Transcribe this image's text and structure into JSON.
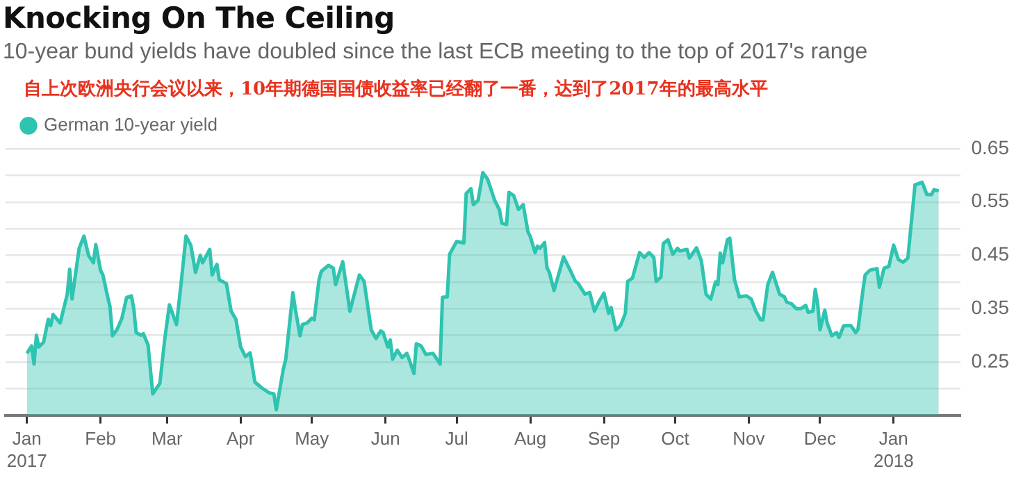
{
  "chart_data": {
    "type": "area",
    "title": "Knocking On The Ceiling",
    "subtitle": "10-year bund yields have doubled since the last ECB meeting to the top of 2017's range",
    "annotations": [
      "自上次欧洲央行会议以来，10年期德国国债收益率已经翻了一番，达到了2017年的最高水平"
    ],
    "legend": "top left",
    "grid": "y",
    "xlim": [
      "2016-12-23",
      "2018-01-29"
    ],
    "xticks": [
      {
        "value": "2017-01-01",
        "label": "Jan\n2017"
      },
      {
        "value": "2017-02-01",
        "label": "Feb"
      },
      {
        "value": "2017-03-01",
        "label": "Mar"
      },
      {
        "value": "2017-04-01",
        "label": "Apr"
      },
      {
        "value": "2017-05-01",
        "label": "May"
      },
      {
        "value": "2017-06-01",
        "label": "Jun"
      },
      {
        "value": "2017-07-01",
        "label": "Jul"
      },
      {
        "value": "2017-08-01",
        "label": "Aug"
      },
      {
        "value": "2017-09-01",
        "label": "Sep"
      },
      {
        "value": "2017-10-01",
        "label": "Oct"
      },
      {
        "value": "2017-11-01",
        "label": "Nov"
      },
      {
        "value": "2017-12-01",
        "label": "Dec"
      },
      {
        "value": "2018-01-01",
        "label": "Jan\n2018"
      }
    ],
    "ylim": [
      0.15,
      0.65
    ],
    "yticks": [
      {
        "value": 0.15,
        "label": null
      },
      {
        "value": 0.2,
        "label": null
      },
      0.25,
      {
        "value": 0.3,
        "label": null
      },
      0.35,
      {
        "value": 0.4,
        "label": null
      },
      0.45,
      {
        "value": 0.5,
        "label": null
      },
      0.55,
      {
        "value": 0.6,
        "label": null
      },
      0.65
    ],
    "x": [
      "2017-01-01",
      "2017-01-03",
      "2017-01-04",
      "2017-01-05",
      "2017-01-06",
      "2017-01-08",
      "2017-01-10",
      "2017-01-11",
      "2017-01-12",
      "2017-01-15",
      "2017-01-18",
      "2017-01-19",
      "2017-01-20",
      "2017-01-23",
      "2017-01-25",
      "2017-01-27",
      "2017-01-29",
      "2017-01-30",
      "2017-02-01",
      "2017-02-02",
      "2017-02-04",
      "2017-02-05",
      "2017-02-06",
      "2017-02-08",
      "2017-02-10",
      "2017-02-12",
      "2017-02-14",
      "2017-02-15",
      "2017-02-16",
      "2017-02-18",
      "2017-02-19",
      "2017-02-21",
      "2017-02-23",
      "2017-02-26",
      "2017-02-28",
      "2017-03-02",
      "2017-03-05",
      "2017-03-07",
      "2017-03-09",
      "2017-03-11",
      "2017-03-13",
      "2017-03-15",
      "2017-03-16",
      "2017-03-19",
      "2017-03-20",
      "2017-03-22",
      "2017-03-23",
      "2017-03-26",
      "2017-03-28",
      "2017-03-30",
      "2017-04-01",
      "2017-04-03",
      "2017-04-05",
      "2017-04-07",
      "2017-04-10",
      "2017-04-13",
      "2017-04-15",
      "2017-04-16",
      "2017-04-19",
      "2017-04-20",
      "2017-04-23",
      "2017-04-24",
      "2017-04-26",
      "2017-04-27",
      "2017-04-29",
      "2017-05-01",
      "2017-05-02",
      "2017-05-04",
      "2017-05-05",
      "2017-05-08",
      "2017-05-10",
      "2017-05-11",
      "2017-05-14",
      "2017-05-17",
      "2017-05-21",
      "2017-05-23",
      "2017-05-26",
      "2017-05-28",
      "2017-05-30",
      "2017-05-31",
      "2017-06-02",
      "2017-06-03",
      "2017-06-04",
      "2017-06-06",
      "2017-06-08",
      "2017-06-10",
      "2017-06-11",
      "2017-06-13",
      "2017-06-14",
      "2017-06-16",
      "2017-06-18",
      "2017-06-21",
      "2017-06-24",
      "2017-06-25",
      "2017-06-27",
      "2017-06-28",
      "2017-07-01",
      "2017-07-04",
      "2017-07-05",
      "2017-07-07",
      "2017-07-08",
      "2017-07-10",
      "2017-07-12",
      "2017-07-14",
      "2017-07-17",
      "2017-07-19",
      "2017-07-20",
      "2017-07-22",
      "2017-07-23",
      "2017-07-25",
      "2017-07-27",
      "2017-07-29",
      "2017-07-31",
      "2017-08-01",
      "2017-08-03",
      "2017-08-04",
      "2017-08-05",
      "2017-08-07",
      "2017-08-08",
      "2017-08-09",
      "2017-08-11",
      "2017-08-15",
      "2017-08-18",
      "2017-08-20",
      "2017-08-21",
      "2017-08-24",
      "2017-08-26",
      "2017-08-28",
      "2017-08-30",
      "2017-09-01",
      "2017-09-03",
      "2017-09-04",
      "2017-09-06",
      "2017-09-08",
      "2017-09-10",
      "2017-09-11",
      "2017-09-13",
      "2017-09-16",
      "2017-09-18",
      "2017-09-20",
      "2017-09-22",
      "2017-09-23",
      "2017-09-25",
      "2017-09-26",
      "2017-09-28",
      "2017-09-30",
      "2017-10-02",
      "2017-10-03",
      "2017-10-06",
      "2017-10-07",
      "2017-10-10",
      "2017-10-12",
      "2017-10-14",
      "2017-10-16",
      "2017-10-18",
      "2017-10-19",
      "2017-10-20",
      "2017-10-21",
      "2017-10-23",
      "2017-10-24",
      "2017-10-26",
      "2017-10-28",
      "2017-10-31",
      "2017-11-02",
      "2017-11-04",
      "2017-11-06",
      "2017-11-07",
      "2017-11-09",
      "2017-11-11",
      "2017-11-14",
      "2017-11-16",
      "2017-11-17",
      "2017-11-19",
      "2017-11-21",
      "2017-11-23",
      "2017-11-25",
      "2017-11-26",
      "2017-11-28",
      "2017-11-29",
      "2017-11-30",
      "2017-12-01",
      "2017-12-03",
      "2017-12-04",
      "2017-12-06",
      "2017-12-08",
      "2017-12-09",
      "2017-12-11",
      "2017-12-14",
      "2017-12-16",
      "2017-12-17",
      "2017-12-19",
      "2017-12-20",
      "2017-12-22",
      "2017-12-25",
      "2017-12-26",
      "2017-12-28",
      "2017-12-30",
      "2018-01-01",
      "2018-01-03",
      "2018-01-05",
      "2018-01-07",
      "2018-01-09",
      "2018-01-10",
      "2018-01-13",
      "2018-01-15",
      "2018-01-17",
      "2018-01-18",
      "2018-01-20"
    ],
    "series": [
      {
        "name": "German 10-year yield",
        "color": "#2ec4b0",
        "values": [
          0.266,
          0.28,
          0.246,
          0.3,
          0.278,
          0.287,
          0.33,
          0.318,
          0.339,
          0.323,
          0.377,
          0.424,
          0.368,
          0.463,
          0.486,
          0.449,
          0.436,
          0.47,
          0.422,
          0.413,
          0.372,
          0.353,
          0.299,
          0.311,
          0.332,
          0.371,
          0.374,
          0.35,
          0.305,
          0.3,
          0.303,
          0.282,
          0.19,
          0.21,
          0.291,
          0.357,
          0.32,
          0.4,
          0.486,
          0.469,
          0.418,
          0.45,
          0.436,
          0.461,
          0.413,
          0.433,
          0.404,
          0.397,
          0.345,
          0.33,
          0.278,
          0.26,
          0.267,
          0.212,
          0.201,
          0.192,
          0.19,
          0.16,
          0.237,
          0.255,
          0.38,
          0.35,
          0.299,
          0.32,
          0.323,
          0.332,
          0.329,
          0.404,
          0.42,
          0.431,
          0.426,
          0.395,
          0.438,
          0.345,
          0.413,
          0.401,
          0.31,
          0.294,
          0.308,
          0.305,
          0.278,
          0.291,
          0.255,
          0.272,
          0.258,
          0.266,
          0.254,
          0.228,
          0.284,
          0.28,
          0.264,
          0.266,
          0.246,
          0.371,
          0.372,
          0.452,
          0.476,
          0.473,
          0.566,
          0.575,
          0.545,
          0.553,
          0.605,
          0.593,
          0.553,
          0.535,
          0.51,
          0.508,
          0.568,
          0.562,
          0.536,
          0.545,
          0.494,
          0.485,
          0.455,
          0.467,
          0.463,
          0.474,
          0.427,
          0.418,
          0.384,
          0.447,
          0.42,
          0.401,
          0.398,
          0.377,
          0.38,
          0.345,
          0.364,
          0.379,
          0.341,
          0.352,
          0.31,
          0.318,
          0.341,
          0.401,
          0.407,
          0.455,
          0.446,
          0.455,
          0.446,
          0.401,
          0.409,
          0.472,
          0.479,
          0.452,
          0.463,
          0.458,
          0.461,
          0.445,
          0.464,
          0.44,
          0.377,
          0.368,
          0.4,
          0.395,
          0.454,
          0.436,
          0.479,
          0.482,
          0.404,
          0.372,
          0.374,
          0.368,
          0.345,
          0.329,
          0.329,
          0.395,
          0.418,
          0.377,
          0.372,
          0.362,
          0.359,
          0.35,
          0.35,
          0.356,
          0.343,
          0.345,
          0.386,
          0.359,
          0.31,
          0.347,
          0.323,
          0.299,
          0.305,
          0.296,
          0.318,
          0.318,
          0.305,
          0.311,
          0.382,
          0.413,
          0.422,
          0.425,
          0.39,
          0.426,
          0.429,
          0.469,
          0.442,
          0.437,
          0.445,
          0.536,
          0.582,
          0.587,
          0.564,
          0.564,
          0.573,
          0.571
        ]
      }
    ]
  }
}
